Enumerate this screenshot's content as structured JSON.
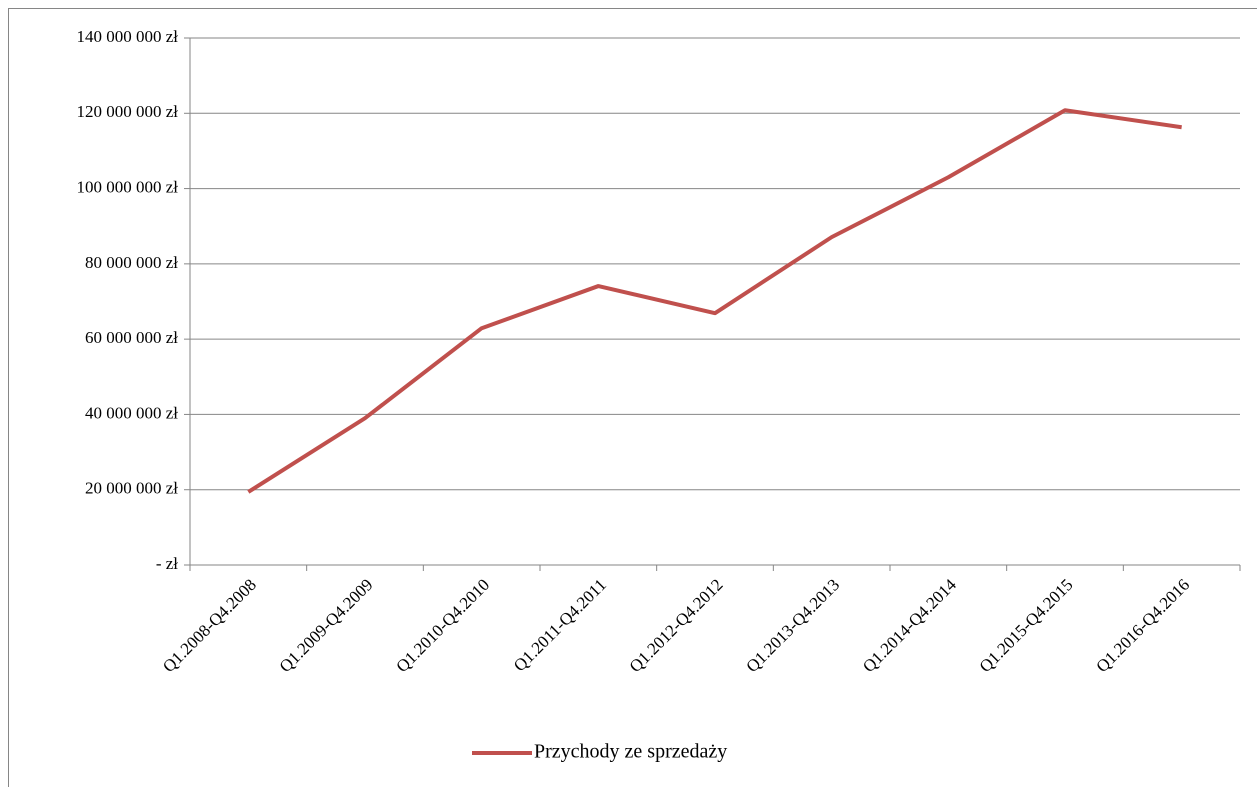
{
  "chart_data": {
    "type": "line",
    "categories": [
      "Q1.2008-Q4.2008",
      "Q1.2009-Q4.2009",
      "Q1.2010-Q4.2010",
      "Q1.2011-Q4.2011",
      "Q1.2012-Q4.2012",
      "Q1.2013-Q4.2013",
      "Q1.2014-Q4.2014",
      "Q1.2015-Q4.2015",
      "Q1.2016-Q4.2016"
    ],
    "series": [
      {
        "name": "Przychody ze sprzedaży",
        "color": "#c0504d",
        "values": [
          19400000,
          39000000,
          62900000,
          74100000,
          66900000,
          87100000,
          103000000,
          120800000,
          116300000
        ]
      }
    ],
    "ylim": [
      0,
      140000000
    ],
    "yticks": [
      {
        "value": 0,
        "label": "- zł"
      },
      {
        "value": 20000000,
        "label": "20 000 000 zł"
      },
      {
        "value": 40000000,
        "label": "40 000 000 zł"
      },
      {
        "value": 60000000,
        "label": "60 000 000 zł"
      },
      {
        "value": 80000000,
        "label": "80 000 000 zł"
      },
      {
        "value": 100000000,
        "label": "100 000 000 zł"
      },
      {
        "value": 120000000,
        "label": "120 000 000 zł"
      },
      {
        "value": 140000000,
        "label": "140 000 000 zł"
      }
    ],
    "grid": true,
    "legend": "bottom"
  }
}
